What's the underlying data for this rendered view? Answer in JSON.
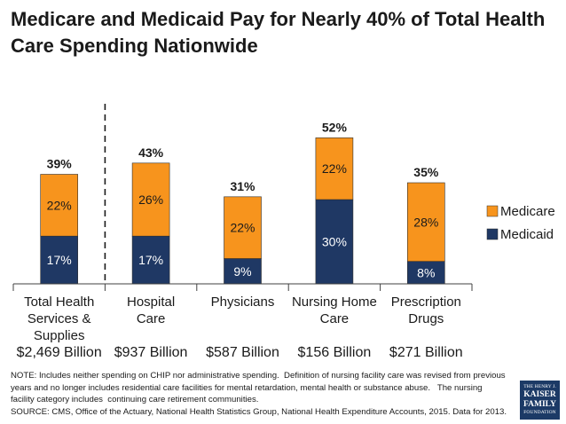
{
  "chart_data": {
    "type": "bar",
    "stacked": true,
    "title": "Medicare and Medicaid Pay for Nearly 40% of Total Health Care Spending Nationwide",
    "xlabel": "",
    "ylabel": "",
    "categories": [
      "Total Health Services & Supplies",
      "Hospital Care",
      "Physicians",
      "Nursing Home Care",
      "Prescription Drugs"
    ],
    "series": [
      {
        "name": "Medicaid",
        "values": [
          17,
          17,
          9,
          30,
          8
        ],
        "color": "#1F3864"
      },
      {
        "name": "Medicare",
        "values": [
          22,
          26,
          22,
          22,
          28
        ],
        "color": "#F7941D"
      }
    ],
    "totals": [
      39,
      43,
      31,
      52,
      35
    ],
    "value_suffix": "%",
    "spending": [
      "$2,469 Billion",
      "$937 Billion",
      "$587 Billion",
      "$156 Billion",
      "$271 Billion"
    ],
    "ylim": [
      0,
      60
    ],
    "grid": false,
    "legend": {
      "position": "right"
    }
  },
  "note": {
    "lines": [
      "NOTE: Includes neither spending on CHIP nor administrative spending.  Definition of nursing facility care was revised from previous",
      "years and no longer includes residential care facilities for mental retardation, mental health or substance abuse.   The nursing",
      "facility category includes  continuing care retirement communities."
    ],
    "source": "SOURCE: CMS, Office of the Actuary, National Health Statistics Group, National Health Expenditure Accounts, 2015. Data for 2013."
  },
  "logo": {
    "lines": [
      "THE HENRY J.",
      "KAISER",
      "FAMILY",
      "FOUNDATION"
    ],
    "color": "#1C3A66"
  }
}
